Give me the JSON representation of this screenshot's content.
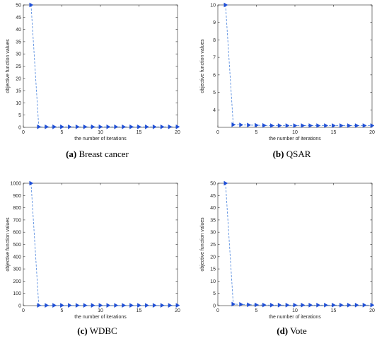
{
  "colors": {
    "series": "#1f4fd6",
    "dashed": "#5b8fe0",
    "axis": "#262626"
  },
  "chart_data": [
    {
      "type": "line",
      "caption_tag": "(a)",
      "caption_text": "Breast cancer",
      "xlabel": "the number of iterations",
      "ylabel": "objective function values",
      "xlim": [
        0,
        20
      ],
      "ylim": [
        0,
        50
      ],
      "xticks": [
        0,
        5,
        10,
        15,
        20
      ],
      "yticks": [
        0,
        5,
        10,
        15,
        20,
        25,
        30,
        35,
        40,
        45,
        50
      ],
      "marker": "triangle-right",
      "x": [
        1,
        2,
        3,
        4,
        5,
        6,
        7,
        8,
        9,
        10,
        11,
        12,
        13,
        14,
        15,
        16,
        17,
        18,
        19,
        20
      ],
      "values": [
        50,
        0.2,
        0.2,
        0.2,
        0.2,
        0.2,
        0.2,
        0.2,
        0.2,
        0.2,
        0.2,
        0.2,
        0.2,
        0.2,
        0.2,
        0.2,
        0.2,
        0.2,
        0.2,
        0.2
      ]
    },
    {
      "type": "line",
      "caption_tag": "(b)",
      "caption_text": "QSAR",
      "xlabel": "the number of iterations",
      "ylabel": "objective function values",
      "xlim": [
        0,
        20
      ],
      "ylim": [
        3,
        10
      ],
      "xticks": [
        0,
        5,
        10,
        15,
        20
      ],
      "yticks": [
        4,
        5,
        6,
        7,
        8,
        9,
        10
      ],
      "marker": "triangle-right",
      "x": [
        1,
        2,
        3,
        4,
        5,
        6,
        7,
        8,
        9,
        10,
        11,
        12,
        13,
        14,
        15,
        16,
        17,
        18,
        19,
        20
      ],
      "values": [
        10,
        3.15,
        3.14,
        3.13,
        3.12,
        3.11,
        3.1,
        3.1,
        3.1,
        3.1,
        3.1,
        3.1,
        3.1,
        3.1,
        3.1,
        3.1,
        3.1,
        3.1,
        3.1,
        3.1
      ]
    },
    {
      "type": "line",
      "caption_tag": "(c)",
      "caption_text": "WDBC",
      "xlabel": "the number of iterations",
      "ylabel": "objective function values",
      "xlim": [
        0,
        20
      ],
      "ylim": [
        0,
        1000
      ],
      "xticks": [
        0,
        5,
        10,
        15,
        20
      ],
      "yticks": [
        0,
        100,
        200,
        300,
        400,
        500,
        600,
        700,
        800,
        900,
        1000
      ],
      "marker": "triangle-right",
      "x": [
        1,
        2,
        3,
        4,
        5,
        6,
        7,
        8,
        9,
        10,
        11,
        12,
        13,
        14,
        15,
        16,
        17,
        18,
        19,
        20
      ],
      "values": [
        1000,
        2,
        2,
        2,
        2,
        2,
        2,
        2,
        2,
        2,
        2,
        2,
        2,
        2,
        2,
        2,
        2,
        2,
        2,
        2
      ]
    },
    {
      "type": "line",
      "caption_tag": "(d)",
      "caption_text": "Vote",
      "xlabel": "the number of iterations",
      "ylabel": "objective function values",
      "xlim": [
        0,
        20
      ],
      "ylim": [
        0,
        50
      ],
      "xticks": [
        0,
        5,
        10,
        15,
        20
      ],
      "yticks": [
        0,
        5,
        10,
        15,
        20,
        25,
        30,
        35,
        40,
        45,
        50
      ],
      "marker": "triangle-right",
      "x": [
        1,
        2,
        3,
        4,
        5,
        6,
        7,
        8,
        9,
        10,
        11,
        12,
        13,
        14,
        15,
        16,
        17,
        18,
        19,
        20
      ],
      "values": [
        50,
        0.6,
        0.5,
        0.35,
        0.3,
        0.25,
        0.2,
        0.2,
        0.2,
        0.2,
        0.2,
        0.2,
        0.2,
        0.2,
        0.2,
        0.2,
        0.2,
        0.2,
        0.2,
        0.2
      ]
    }
  ]
}
